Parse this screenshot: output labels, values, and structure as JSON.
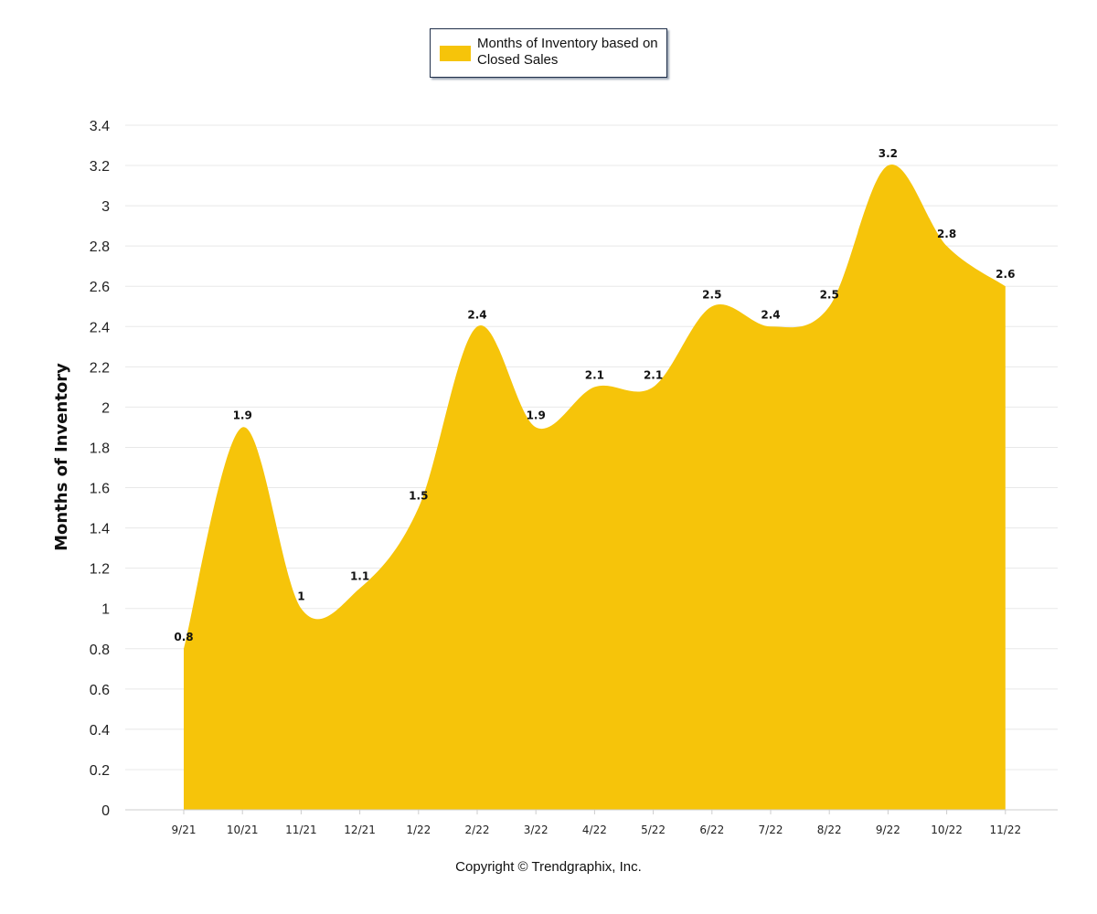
{
  "legend": {
    "label": "Months of Inventory based on Closed Sales"
  },
  "footer": {
    "copyright": "Copyright © Trendgraphix, Inc."
  },
  "colors": {
    "fill": "#f6c40a",
    "grid": "#e8e8e8",
    "axis": "#cccccc",
    "text": "#111111"
  },
  "chart_data": {
    "type": "area",
    "title": "",
    "xlabel": "",
    "ylabel": "Months of Inventory",
    "ylim": [
      0,
      3.4
    ],
    "yticks": [
      "0",
      "0.2",
      "0.4",
      "0.6",
      "0.8",
      "1",
      "1.2",
      "1.4",
      "1.6",
      "1.8",
      "2",
      "2.2",
      "2.4",
      "2.6",
      "2.8",
      "3",
      "3.2",
      "3.4"
    ],
    "grid": true,
    "legend_position": "top-center",
    "categories": [
      "9/21",
      "10/21",
      "11/21",
      "12/21",
      "1/22",
      "2/22",
      "3/22",
      "4/22",
      "5/22",
      "6/22",
      "7/22",
      "8/22",
      "9/22",
      "10/22",
      "11/22"
    ],
    "series": [
      {
        "name": "Months of Inventory based on Closed Sales",
        "values": [
          0.8,
          1.9,
          1,
          1.1,
          1.5,
          2.4,
          1.9,
          2.1,
          2.1,
          2.5,
          2.4,
          2.5,
          3.2,
          2.8,
          2.6
        ],
        "data_labels": [
          "0.8",
          "1.9",
          "1",
          "1.1",
          "1.5",
          "2.4",
          "1.9",
          "2.1",
          "2.1",
          "2.5",
          "2.4",
          "2.5",
          "3.2",
          "2.8",
          "2.6"
        ]
      }
    ]
  }
}
